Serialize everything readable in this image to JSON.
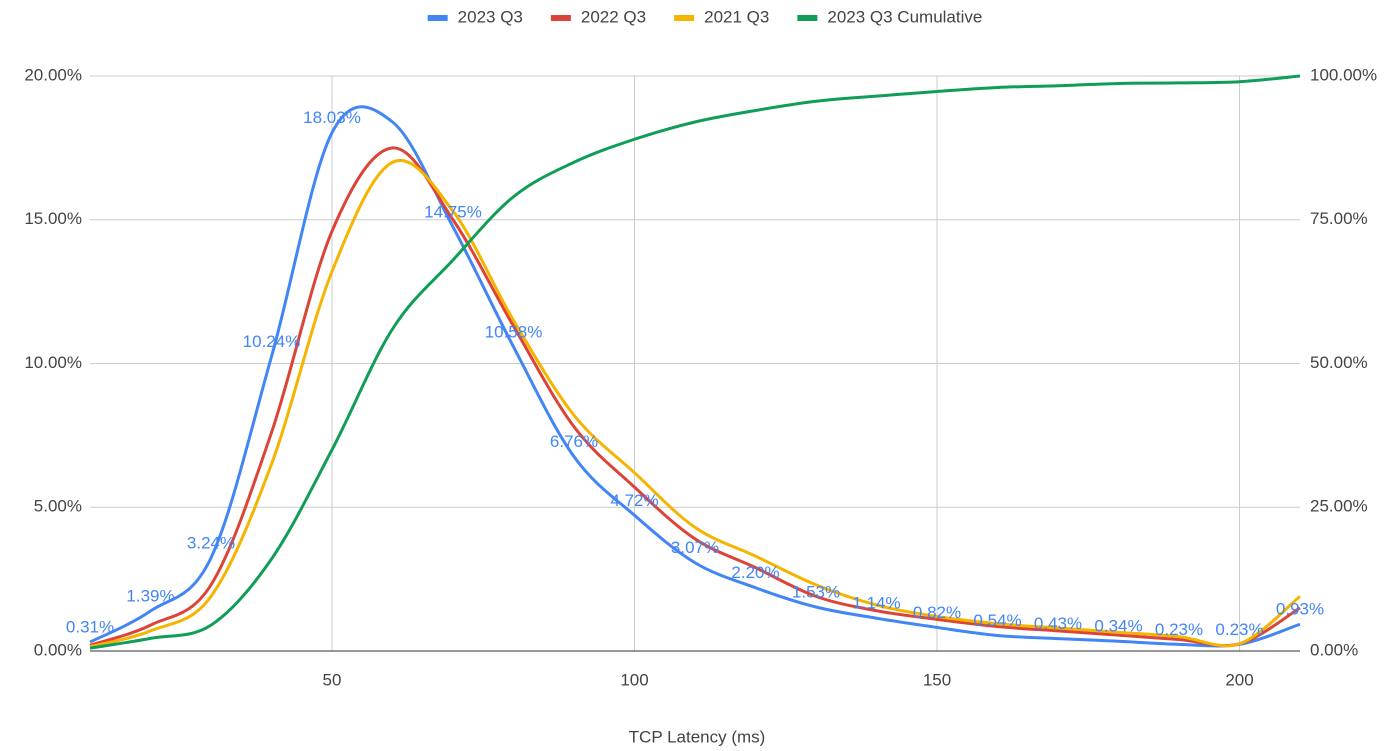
{
  "chart_data": {
    "type": "line",
    "x_label": "TCP Latency (ms)",
    "x": [
      10,
      20,
      30,
      40,
      50,
      60,
      70,
      80,
      90,
      100,
      110,
      120,
      130,
      140,
      150,
      160,
      170,
      180,
      190,
      200,
      210
    ],
    "xlim": [
      10,
      210
    ],
    "xticks": [
      50,
      100,
      150,
      200
    ],
    "ylim": [
      0,
      20
    ],
    "yticks": [
      {
        "value": 0,
        "label": "0.00%"
      },
      {
        "value": 5,
        "label": "5.00%"
      },
      {
        "value": 10,
        "label": "10.00%"
      },
      {
        "value": 15,
        "label": "15.00%"
      },
      {
        "value": 20,
        "label": "20.00%"
      }
    ],
    "y2lim": [
      0,
      100
    ],
    "y2ticks": [
      {
        "value": 0,
        "label": "0.00%"
      },
      {
        "value": 25,
        "label": "25.00%"
      },
      {
        "value": 50,
        "label": "50.00%"
      },
      {
        "value": 75,
        "label": "75.00%"
      },
      {
        "value": 100,
        "label": "100.00%"
      }
    ],
    "grid": true,
    "legend": "top",
    "series": [
      {
        "name": "2023 Q3",
        "color": "#4285f4",
        "values": [
          0.31,
          1.39,
          3.24,
          10.24,
          18.03,
          18.4,
          14.75,
          10.58,
          6.76,
          4.72,
          3.07,
          2.2,
          1.53,
          1.14,
          0.82,
          0.54,
          0.43,
          0.34,
          0.23,
          0.23,
          0.93
        ],
        "value_labels": [
          "0.31%",
          "1.39%",
          "3.24%",
          "10.24%",
          "18.03%",
          null,
          "14.75%",
          "10.58%",
          "6.76%",
          "4.72%",
          "3.07%",
          "2.20%",
          "1.53%",
          "1.14%",
          "0.82%",
          "0.54%",
          "0.43%",
          "0.34%",
          "0.23%",
          "0.23%",
          "0.93%"
        ]
      },
      {
        "name": "2022 Q3",
        "color": "#db4437",
        "values": [
          0.2,
          0.9,
          2.3,
          7.6,
          14.6,
          17.5,
          15.0,
          11.3,
          7.8,
          5.7,
          3.9,
          2.9,
          1.9,
          1.4,
          1.1,
          0.85,
          0.7,
          0.55,
          0.4,
          0.25,
          1.5
        ]
      },
      {
        "name": "2021 Q3",
        "color": "#f4b400",
        "values": [
          0.15,
          0.7,
          1.9,
          6.5,
          13.2,
          17.0,
          15.3,
          11.5,
          8.2,
          6.2,
          4.3,
          3.3,
          2.3,
          1.6,
          1.2,
          0.95,
          0.8,
          0.65,
          0.5,
          0.25,
          1.9
        ]
      },
      {
        "name": "2023 Q3 Cumulative",
        "color": "#0f9d58",
        "axis": "y2",
        "values": [
          0.5,
          2.2,
          4.5,
          16,
          35,
          56,
          68,
          79,
          85,
          89,
          92,
          94,
          95.6,
          96.5,
          97.3,
          98,
          98.3,
          98.7,
          98.8,
          99,
          100
        ]
      }
    ]
  }
}
